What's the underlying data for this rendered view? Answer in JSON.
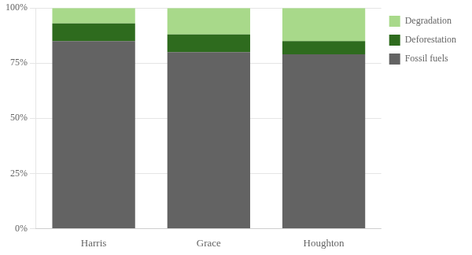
{
  "chart_data": {
    "type": "bar",
    "stacked": true,
    "categories": [
      "Harris",
      "Grace",
      "Houghton"
    ],
    "series": [
      {
        "name": "Fossil fuels",
        "color": "#636363",
        "values": [
          85,
          80,
          79
        ]
      },
      {
        "name": "Deforestation",
        "color": "#2e6b1e",
        "values": [
          8,
          8,
          6
        ]
      },
      {
        "name": "Degradation",
        "color": "#a8d98a",
        "values": [
          7,
          12,
          15
        ]
      }
    ],
    "ylim": [
      0,
      100
    ],
    "yticks": [
      {
        "value": 0,
        "label": "0%"
      },
      {
        "value": 25,
        "label": "25%"
      },
      {
        "value": 50,
        "label": "50%"
      },
      {
        "value": 75,
        "label": "75%"
      },
      {
        "value": 100,
        "label": "100%"
      }
    ],
    "grid": true,
    "legend": "right"
  }
}
